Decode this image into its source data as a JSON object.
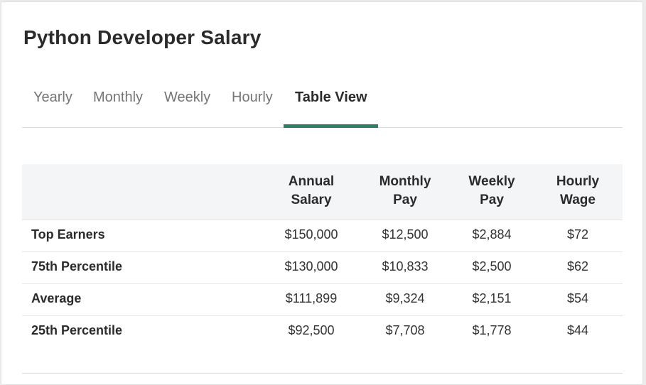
{
  "page": {
    "title": "Python Developer Salary"
  },
  "tabs": [
    {
      "label": "Yearly"
    },
    {
      "label": "Monthly"
    },
    {
      "label": "Weekly"
    },
    {
      "label": "Hourly"
    },
    {
      "label": "Table View",
      "active": true
    }
  ],
  "colors": {
    "accent": "#2f7d65",
    "header_bg": "#f4f5f6"
  },
  "table": {
    "headers": [
      {
        "line1": "Annual",
        "line2": "Salary"
      },
      {
        "line1": "Monthly",
        "line2": "Pay"
      },
      {
        "line1": "Weekly",
        "line2": "Pay"
      },
      {
        "line1": "Hourly",
        "line2": "Wage"
      }
    ],
    "rows": [
      {
        "label": "Top Earners",
        "values": [
          "$150,000",
          "$12,500",
          "$2,884",
          "$72"
        ]
      },
      {
        "label": "75th Percentile",
        "values": [
          "$130,000",
          "$10,833",
          "$2,500",
          "$62"
        ]
      },
      {
        "label": "Average",
        "values": [
          "$111,899",
          "$9,324",
          "$2,151",
          "$54"
        ]
      },
      {
        "label": "25th Percentile",
        "values": [
          "$92,500",
          "$7,708",
          "$1,778",
          "$44"
        ]
      }
    ]
  }
}
